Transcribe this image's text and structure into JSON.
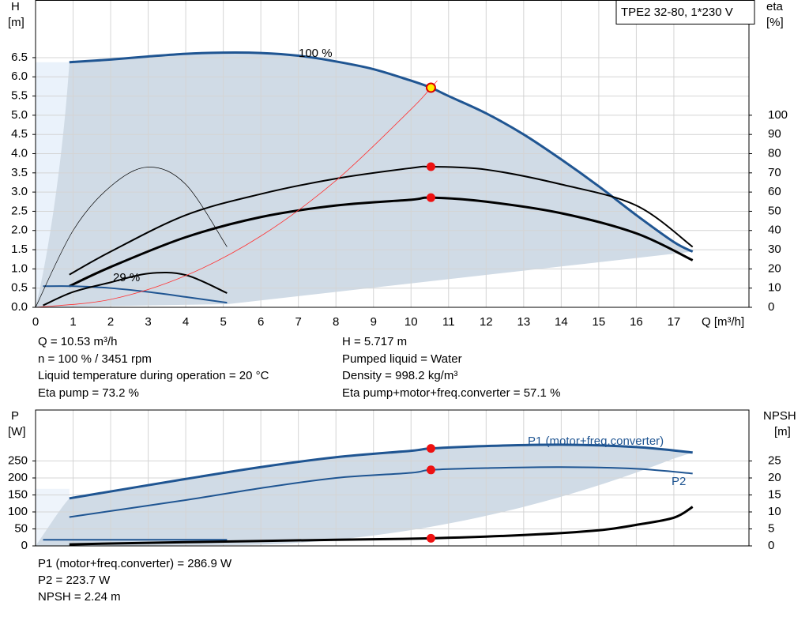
{
  "chart_data": [
    {
      "type": "line",
      "title": "TPE2 32-80, 1*230 V",
      "xlabel": "Q [m³/h]",
      "ylabel": [
        "H",
        "[m]"
      ],
      "y2label": [
        "eta",
        "[%]"
      ],
      "xlim": [
        0,
        19
      ],
      "xticks": [
        0,
        1,
        2,
        3,
        4,
        5,
        6,
        7,
        8,
        9,
        10,
        11,
        12,
        13,
        14,
        15,
        16,
        17
      ],
      "ylim": [
        0,
        8
      ],
      "yticks": [
        {
          "value": 0,
          "label": "0.0"
        },
        {
          "value": 0.5,
          "label": "0.5"
        },
        {
          "value": 1,
          "label": "1.0"
        },
        {
          "value": 1.5,
          "label": "1.5"
        },
        {
          "value": 2,
          "label": "2.0"
        },
        {
          "value": 2.5,
          "label": "2.5"
        },
        {
          "value": 3,
          "label": "3.0"
        },
        {
          "value": 3.5,
          "label": "3.5"
        },
        {
          "value": 4,
          "label": "4.0"
        },
        {
          "value": 4.5,
          "label": "4.5"
        },
        {
          "value": 5,
          "label": "5.0"
        },
        {
          "value": 5.5,
          "label": "5.5"
        },
        {
          "value": 6,
          "label": "6.0"
        },
        {
          "value": 6.5,
          "label": "6.5"
        }
      ],
      "y2lim": [
        0,
        160
      ],
      "y2ticks": [
        0,
        10,
        20,
        30,
        40,
        50,
        60,
        70,
        80,
        90,
        100
      ],
      "grid": true,
      "annotations": [
        "100 %",
        "29 %"
      ],
      "series": [
        {
          "color": "#1f5592",
          "width": 3,
          "x": [
            0.9,
            2,
            3,
            4,
            5,
            6,
            7,
            8,
            9,
            10,
            10.53,
            11,
            12,
            13,
            14,
            15,
            16,
            17,
            17.5
          ],
          "values": [
            6.38,
            6.45,
            6.53,
            6.6,
            6.63,
            6.62,
            6.55,
            6.4,
            6.2,
            5.9,
            5.717,
            5.5,
            5.05,
            4.5,
            3.85,
            3.15,
            2.4,
            1.7,
            1.45
          ]
        },
        {
          "color": "#000000",
          "width": 2,
          "axis": "y2",
          "x": [
            0.9,
            2,
            4,
            6,
            8,
            10,
            10.53,
            12,
            14,
            16,
            17.5
          ],
          "values": [
            17,
            29,
            48,
            59,
            67,
            72.5,
            73.2,
            71.7,
            64,
            53,
            31.5
          ]
        },
        {
          "color": "#000000",
          "width": 3,
          "axis": "y2",
          "x": [
            0.9,
            2,
            4,
            6,
            8,
            10,
            10.53,
            12,
            14,
            16,
            17.5
          ],
          "values": [
            11,
            21,
            36.5,
            47,
            53,
            56,
            57.1,
            55,
            49,
            38.5,
            24.5
          ]
        },
        {
          "color": "#1f5592",
          "width": 2,
          "x": [
            0.2,
            1,
            2,
            3,
            4,
            5.1
          ],
          "values": [
            0.55,
            0.55,
            0.5,
            0.4,
            0.27,
            0.12
          ]
        },
        {
          "color": "#000000",
          "width": 0.7,
          "axis": "y2",
          "x": [
            0,
            1,
            2,
            3,
            4,
            5.1
          ],
          "values": [
            0,
            40,
            63,
            73,
            64,
            31.5
          ]
        },
        {
          "color": "#000000",
          "width": 2,
          "axis": "y2",
          "x": [
            0.2,
            1,
            2,
            3,
            4,
            5.1
          ],
          "values": [
            1,
            8,
            13,
            17.6,
            16.8,
            7.4
          ]
        },
        {
          "color": "#ff3333",
          "width": 0.8,
          "x": [
            0,
            2,
            4,
            6,
            8,
            10,
            10.53,
            10.7
          ],
          "values": [
            0,
            0.206,
            0.825,
            1.856,
            3.3,
            5.156,
            5.717,
            5.9
          ]
        }
      ],
      "points": [
        {
          "x": 10.53,
          "y": 5.717,
          "color": "#ffee00"
        },
        {
          "x": 10.53,
          "y": 73.2,
          "axis": "y2",
          "color": "#ee1111"
        },
        {
          "x": 10.53,
          "y": 57.1,
          "axis": "y2",
          "color": "#ee1111"
        }
      ],
      "info": [
        [
          "Q = 10.53 m³/h",
          "n = 100 % / 3451 rpm",
          "Liquid temperature during operation = 20 °C",
          "Eta pump = 73.2 %"
        ],
        [
          "H = 5.717 m",
          "Pumped liquid = Water",
          "Density = 998.2 kg/m³",
          "Eta pump+motor+freq.converter = 57.1 %"
        ]
      ]
    },
    {
      "type": "line",
      "ylabel": [
        "P",
        "[W]"
      ],
      "y2label": [
        "NPSH",
        "[m]"
      ],
      "xlim": [
        0,
        19
      ],
      "xticks": [
        0,
        1,
        2,
        3,
        4,
        5,
        6,
        7,
        8,
        9,
        10,
        11,
        12,
        13,
        14,
        15,
        16,
        17
      ],
      "ylim": [
        0,
        400
      ],
      "yticks": [
        0,
        50,
        100,
        150,
        200,
        250
      ],
      "y2lim": [
        0,
        40
      ],
      "y2ticks": [
        0,
        5,
        10,
        15,
        20,
        25
      ],
      "grid": true,
      "series": [
        {
          "name": "P1 (motor+freq.converter)",
          "color": "#1f5592",
          "width": 3,
          "x": [
            0.9,
            4,
            6,
            8,
            10,
            10.53,
            12,
            14,
            16,
            17.5
          ],
          "values": [
            140,
            197,
            232,
            261,
            280,
            286.9,
            294,
            298,
            291,
            275
          ]
        },
        {
          "name": "P2",
          "color": "#1f5592",
          "width": 2,
          "x": [
            0.9,
            4,
            6,
            8,
            10,
            10.53,
            12,
            14,
            16,
            17.5
          ],
          "values": [
            85,
            135,
            170,
            200,
            215,
            223.7,
            229,
            232,
            227,
            213
          ]
        },
        {
          "color": "#1f5592",
          "width": 2,
          "x": [
            0.2,
            5.1
          ],
          "values": [
            18,
            18
          ]
        },
        {
          "color": "#000000",
          "width": 3,
          "axis": "y2",
          "x": [
            0.9,
            4,
            8,
            10.53,
            13,
            15,
            16,
            17,
            17.5
          ],
          "values": [
            0.45,
            1.1,
            1.8,
            2.24,
            3.2,
            4.6,
            6.2,
            8.3,
            11.5
          ]
        }
      ],
      "points": [
        {
          "x": 10.53,
          "y": 286.9,
          "color": "#ee1111"
        },
        {
          "x": 10.53,
          "y": 223.7,
          "color": "#ee1111"
        },
        {
          "x": 10.53,
          "y": 2.24,
          "axis": "y2",
          "color": "#ee1111"
        }
      ],
      "info": [
        [
          "P1 (motor+freq.converter) = 286.9 W",
          "P2 = 223.7 W",
          "NPSH = 2.24 m"
        ]
      ]
    }
  ]
}
